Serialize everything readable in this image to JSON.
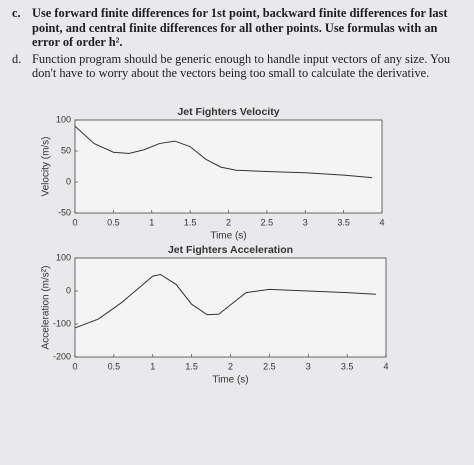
{
  "document": {
    "items": [
      {
        "label": "c.",
        "text": "Use forward finite differences for 1st point, backward finite differences for last point, and central finite differences for all other points. Use formulas with an error of order h².",
        "bold": true
      },
      {
        "label": "d.",
        "text": "Function program should be generic enough to handle input vectors of any size. You don't have to worry about the vectors being too small to calculate the derivative.",
        "bold": false
      }
    ]
  },
  "chart_data": [
    {
      "type": "line",
      "title": "Jet Fighters Velocity",
      "x_label": "Time (s)",
      "y_label": "Velocity (m/s)",
      "x": [
        0,
        0.25,
        0.5,
        0.7,
        0.9,
        1.1,
        1.3,
        1.5,
        1.7,
        1.9,
        2.1,
        2.5,
        3.0,
        3.5,
        3.87
      ],
      "series": [
        {
          "color": "#333333",
          "values": [
            90,
            62,
            48,
            46,
            52,
            62,
            66,
            57,
            37,
            24,
            19,
            17,
            15,
            11,
            7
          ]
        }
      ],
      "xlim": [
        0,
        4
      ],
      "xticks": [
        0,
        0.5,
        1,
        1.5,
        2,
        2.5,
        3,
        3.5,
        4
      ],
      "ylim": [
        -50,
        100
      ],
      "yticks": [
        -50,
        0,
        50,
        100
      ]
    },
    {
      "type": "line",
      "title": "Jet Fighters Acceleration",
      "x_label": "Time (s)",
      "y_label": "Acceleration (m/s²)",
      "x": [
        0,
        0.3,
        0.6,
        0.9,
        1.0,
        1.1,
        1.3,
        1.5,
        1.7,
        1.85,
        2.0,
        2.2,
        2.5,
        3.0,
        3.5,
        3.87
      ],
      "series": [
        {
          "color": "#333333",
          "values": [
            -112,
            -85,
            -35,
            25,
            45,
            50,
            20,
            -40,
            -72,
            -70,
            -42,
            -5,
            5,
            0,
            -5,
            -10
          ]
        }
      ],
      "xlim": [
        0,
        4
      ],
      "xticks": [
        0,
        0.5,
        1,
        1.5,
        2,
        2.5,
        3,
        3.5,
        4
      ],
      "ylim": [
        -200,
        100
      ],
      "yticks": [
        -200,
        -100,
        0,
        100
      ]
    }
  ]
}
